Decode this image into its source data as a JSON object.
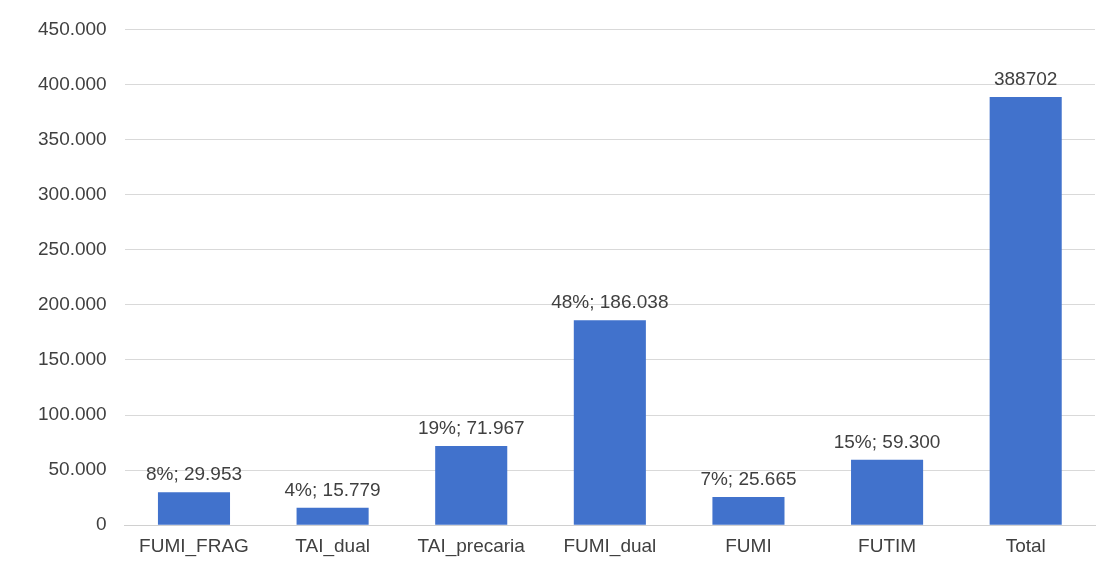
{
  "chart_data": {
    "type": "bar",
    "categories": [
      "FUMI_FRAG",
      "TAI_dual",
      "TAI_precaria",
      "FUMI_dual",
      "FUMI",
      "FUTIM",
      "Total"
    ],
    "values": [
      29953,
      15779,
      71967,
      186038,
      25665,
      59300,
      388702
    ],
    "value_labels": [
      "8%; 29.953",
      "4%; 15.779",
      "19%; 71.967",
      "48%; 186.038",
      "7%; 25.665",
      "15%; 59.300",
      "388702"
    ],
    "color": "#4172cc",
    "ylim": [
      0,
      450000
    ],
    "yticks": [
      {
        "value": 0,
        "label": "0"
      },
      {
        "value": 50000,
        "label": "50.000"
      },
      {
        "value": 100000,
        "label": "100.000"
      },
      {
        "value": 150000,
        "label": "150.000"
      },
      {
        "value": 200000,
        "label": "200.000"
      },
      {
        "value": 250000,
        "label": "250.000"
      },
      {
        "value": 300000,
        "label": "300.000"
      },
      {
        "value": 350000,
        "label": "350.000"
      },
      {
        "value": 400000,
        "label": "400.000"
      },
      {
        "value": 450000,
        "label": "450.000"
      }
    ],
    "grid": "y",
    "legend": false
  }
}
